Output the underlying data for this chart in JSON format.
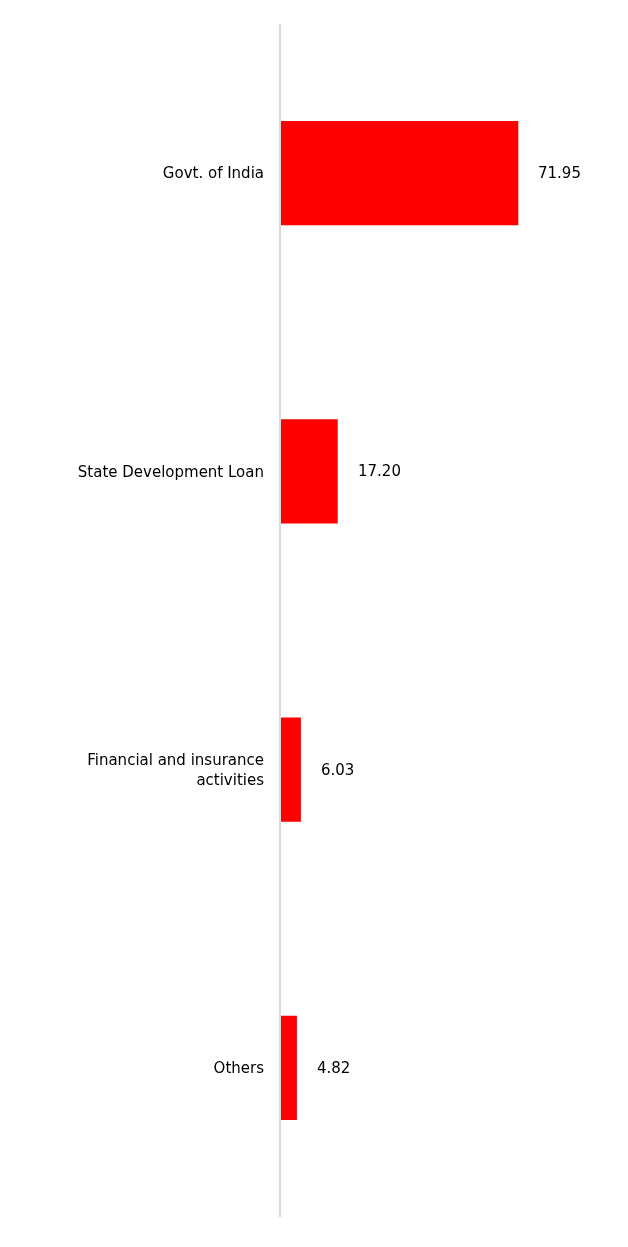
{
  "chart_data": {
    "type": "bar",
    "orientation": "horizontal",
    "categories": [
      "Govt. of India",
      "State Development Loan",
      "Financial and insurance activities",
      "Others"
    ],
    "values": [
      71.95,
      17.2,
      6.03,
      4.82
    ],
    "value_labels": [
      "71.95",
      "17.20",
      "6.03",
      "4.82"
    ],
    "color": "#ff0000",
    "grid": false,
    "legend": false
  }
}
